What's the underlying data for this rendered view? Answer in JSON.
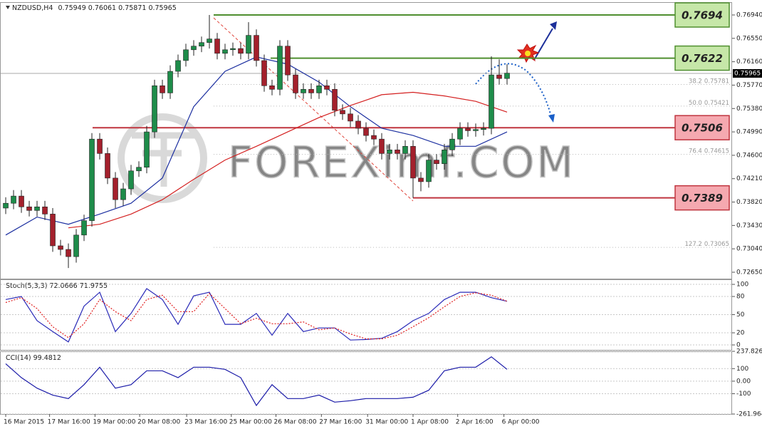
{
  "chart_data": [
    {
      "type": "candlestick",
      "symbol": "NZDUSD,H4",
      "quote": [
        0.75949,
        0.76061,
        0.75871,
        0.75965
      ],
      "last_price": 0.75965,
      "watermark": "FOREXimf.COM",
      "bull_color": "#1e8c4a",
      "bear_color": "#a3202c",
      "open": [
        0.7372,
        0.738,
        0.7392,
        0.7374,
        0.7368,
        0.7374,
        0.7362,
        0.7309,
        0.7303,
        0.7291,
        0.7327,
        0.7351,
        0.7487,
        0.7463,
        0.7422,
        0.7386,
        0.7404,
        0.7434,
        0.744,
        0.7499,
        0.7576,
        0.7564,
        0.76,
        0.7618,
        0.7636,
        0.7642,
        0.7648,
        0.7654,
        0.763,
        0.7636,
        0.7638,
        0.763,
        0.766,
        0.7618,
        0.7576,
        0.757,
        0.7642,
        0.7594,
        0.7564,
        0.757,
        0.7564,
        0.7576,
        0.757,
        0.7535,
        0.7529,
        0.7517,
        0.7505,
        0.7493,
        0.7487,
        0.7463,
        0.7469,
        0.7463,
        0.7475,
        0.7422,
        0.7416,
        0.7452,
        0.7446,
        0.7469,
        0.7487,
        0.7505,
        0.7501,
        0.7503,
        0.7505,
        0.7594,
        0.7588
      ],
      "high": [
        0.739,
        0.7402,
        0.7402,
        0.7384,
        0.7384,
        0.7384,
        0.7372,
        0.7319,
        0.7313,
        0.7337,
        0.7361,
        0.7497,
        0.7497,
        0.7473,
        0.7432,
        0.7414,
        0.7444,
        0.745,
        0.7509,
        0.7586,
        0.7586,
        0.761,
        0.7628,
        0.7646,
        0.7652,
        0.7658,
        0.7694,
        0.7664,
        0.7646,
        0.7648,
        0.7648,
        0.7682,
        0.767,
        0.7628,
        0.7586,
        0.7652,
        0.7652,
        0.7604,
        0.758,
        0.758,
        0.7586,
        0.7586,
        0.758,
        0.7545,
        0.7539,
        0.7527,
        0.7515,
        0.7503,
        0.7497,
        0.7479,
        0.7479,
        0.7485,
        0.7485,
        0.7432,
        0.7462,
        0.7462,
        0.7479,
        0.7497,
        0.7515,
        0.7515,
        0.7513,
        0.7515,
        0.7625,
        0.762,
        0.7612
      ],
      "low": [
        0.7362,
        0.737,
        0.7364,
        0.7358,
        0.7358,
        0.7352,
        0.7299,
        0.7293,
        0.7272,
        0.7281,
        0.7317,
        0.7341,
        0.7453,
        0.7412,
        0.7372,
        0.7376,
        0.7394,
        0.7424,
        0.743,
        0.7489,
        0.7554,
        0.7554,
        0.759,
        0.7608,
        0.7626,
        0.7632,
        0.7638,
        0.762,
        0.762,
        0.7626,
        0.762,
        0.762,
        0.7608,
        0.7566,
        0.756,
        0.756,
        0.7584,
        0.7554,
        0.7554,
        0.7554,
        0.7554,
        0.756,
        0.7525,
        0.7519,
        0.7507,
        0.7495,
        0.7483,
        0.7477,
        0.7453,
        0.7453,
        0.7453,
        0.7453,
        0.7389,
        0.74,
        0.7406,
        0.7436,
        0.7436,
        0.7459,
        0.7477,
        0.7491,
        0.7491,
        0.7493,
        0.7495,
        0.7578,
        0.7578
      ],
      "close": [
        0.738,
        0.7392,
        0.7374,
        0.7368,
        0.7374,
        0.7362,
        0.7309,
        0.7303,
        0.7291,
        0.7327,
        0.7351,
        0.7487,
        0.7463,
        0.7422,
        0.7386,
        0.7404,
        0.7434,
        0.744,
        0.7499,
        0.7576,
        0.7564,
        0.76,
        0.7618,
        0.7636,
        0.7642,
        0.7648,
        0.7654,
        0.763,
        0.7636,
        0.7638,
        0.763,
        0.766,
        0.7618,
        0.7576,
        0.757,
        0.7642,
        0.7594,
        0.7564,
        0.757,
        0.7564,
        0.7576,
        0.757,
        0.7535,
        0.7529,
        0.7517,
        0.7505,
        0.7493,
        0.7487,
        0.7463,
        0.7469,
        0.7463,
        0.7475,
        0.7422,
        0.7416,
        0.7452,
        0.7446,
        0.7469,
        0.7487,
        0.7505,
        0.7501,
        0.7503,
        0.7505,
        0.7594,
        0.7588,
        0.7597
      ],
      "moving_averages": [
        {
          "color": "#1c2fa0",
          "x": [
            0,
            4,
            8,
            12,
            16,
            20,
            24,
            28,
            32,
            36,
            40,
            44,
            48,
            52,
            56,
            60,
            64
          ],
          "values": [
            0.7327,
            0.7357,
            0.7345,
            0.7362,
            0.738,
            0.7422,
            0.7541,
            0.76,
            0.7624,
            0.7612,
            0.7582,
            0.7541,
            0.7505,
            0.7493,
            0.7475,
            0.7475,
            0.7499
          ]
        },
        {
          "color": "#d42020",
          "x": [
            8,
            12,
            16,
            20,
            24,
            28,
            32,
            36,
            40,
            44,
            48,
            52,
            56,
            60,
            64
          ],
          "values": [
            0.7339,
            0.7345,
            0.7362,
            0.7386,
            0.742,
            0.7452,
            0.7475,
            0.7499,
            0.7523,
            0.7543,
            0.7561,
            0.7565,
            0.7559,
            0.755,
            0.7532
          ]
        }
      ],
      "levels": [
        {
          "price": 0.7694,
          "color": "#4f8f2f",
          "fill": "#c6e7a8"
        },
        {
          "price": 0.7622,
          "color": "#4f8f2f",
          "fill": "#c6e7a8"
        },
        {
          "price": 0.7506,
          "color": "#c0353f",
          "fill": "#f5a9b0"
        },
        {
          "price": 0.7389,
          "color": "#c0353f",
          "fill": "#f5a9b0"
        }
      ],
      "fibonacci": [
        {
          "level": "38.2",
          "price": 0.75781
        },
        {
          "level": "50.0",
          "price": 0.75421
        },
        {
          "level": "76.4",
          "price": 0.74615
        },
        {
          "level": "127.2",
          "price": 0.73065
        }
      ],
      "xlim": [
        -0.73,
        92.73
      ],
      "xticks": [
        {
          "value": 0,
          "label": "16 Mar 2015"
        },
        {
          "value": 5.6,
          "label": "17 Mar 16:00"
        },
        {
          "value": 11.4,
          "label": "19 Mar 00:00"
        },
        {
          "value": 17.1,
          "label": "20 Mar 08:00"
        },
        {
          "value": 23.1,
          "label": "23 Mar 16:00"
        },
        {
          "value": 28.8,
          "label": "25 Mar 00:00"
        },
        {
          "value": 34.5,
          "label": "26 Mar 08:00"
        },
        {
          "value": 40.3,
          "label": "27 Mar 16:00"
        },
        {
          "value": 46.2,
          "label": "31 Mar 00:00"
        },
        {
          "value": 52,
          "label": "1 Apr 08:00"
        },
        {
          "value": 57.7,
          "label": "2 Apr 16:00"
        },
        {
          "value": 63.6,
          "label": "6 Apr 00:00"
        }
      ],
      "ylim": [
        0.72543,
        0.77142
      ],
      "yticks": [
        {
          "value": 0.7694,
          "label": "0.76940"
        },
        {
          "value": 0.7655,
          "label": "0.76550"
        },
        {
          "value": 0.7616,
          "label": "0.76160"
        },
        {
          "value": 0.7577,
          "label": "0.75770"
        },
        {
          "value": 0.7538,
          "label": "0.75380"
        },
        {
          "value": 0.7499,
          "label": "0.74990"
        },
        {
          "value": 0.746,
          "label": "0.74600"
        },
        {
          "value": 0.7421,
          "label": "0.74210"
        },
        {
          "value": 0.7382,
          "label": "0.73820"
        },
        {
          "value": 0.7343,
          "label": "0.73430"
        },
        {
          "value": 0.7304,
          "label": "0.73040"
        },
        {
          "value": 0.7265,
          "label": "0.72650"
        }
      ]
    },
    {
      "type": "line",
      "label": "Stoch(5,3,3)",
      "label_values": [
        72.0666,
        71.9755
      ],
      "x": [
        0,
        2,
        4,
        6,
        8,
        10,
        12,
        14,
        16,
        18,
        20,
        22,
        24,
        26,
        28,
        30,
        32,
        34,
        36,
        38,
        40,
        42,
        44,
        46,
        48,
        50,
        52,
        54,
        56,
        58,
        60,
        62,
        64
      ],
      "series": [
        {
          "color": "#2a2ab8",
          "dash": false,
          "values": [
            75,
            80,
            40,
            22,
            5,
            64,
            87,
            22,
            52,
            93,
            75,
            34,
            81,
            87,
            34,
            34,
            52,
            16,
            52,
            22,
            28,
            28,
            8,
            9,
            11,
            22,
            40,
            52,
            75,
            87,
            87,
            78,
            72
          ]
        },
        {
          "color": "#e02020",
          "dash": true,
          "values": [
            70,
            78,
            60,
            30,
            12,
            35,
            75,
            55,
            40,
            75,
            82,
            55,
            55,
            85,
            60,
            35,
            44,
            35,
            35,
            38,
            25,
            28,
            18,
            10,
            10,
            16,
            30,
            45,
            63,
            80,
            86,
            82,
            72
          ]
        }
      ],
      "ylim": [
        -8.2,
        107.1
      ],
      "yticks": [
        100,
        80,
        50,
        20,
        0
      ],
      "grid": true
    },
    {
      "type": "line",
      "label": "CCI(14)",
      "label_values": [
        99.4812
      ],
      "x": [
        0,
        2,
        4,
        6,
        8,
        10,
        12,
        14,
        16,
        18,
        20,
        22,
        24,
        26,
        28,
        30,
        32,
        34,
        36,
        38,
        40,
        42,
        44,
        46,
        48,
        50,
        52,
        54,
        56,
        58,
        60,
        62,
        64
      ],
      "series": [
        {
          "color": "#1a1aa8",
          "dash": false,
          "values": [
            139,
            28,
            -56,
            -111,
            -139,
            -28,
            111,
            -56,
            -28,
            83,
            83,
            28,
            111,
            111,
            94,
            28,
            -194,
            -28,
            -139,
            -139,
            -111,
            -167,
            -156,
            -139,
            -139,
            -139,
            -128,
            -72,
            83,
            111,
            111,
            194,
            94
          ]
        }
      ],
      "ylim": [
        -261.9641,
        237.8269
      ],
      "yticks": [
        237.8269,
        100,
        {
          "value": 0,
          "label": "0.00"
        },
        -100,
        -261.9641
      ],
      "grid": true
    }
  ]
}
